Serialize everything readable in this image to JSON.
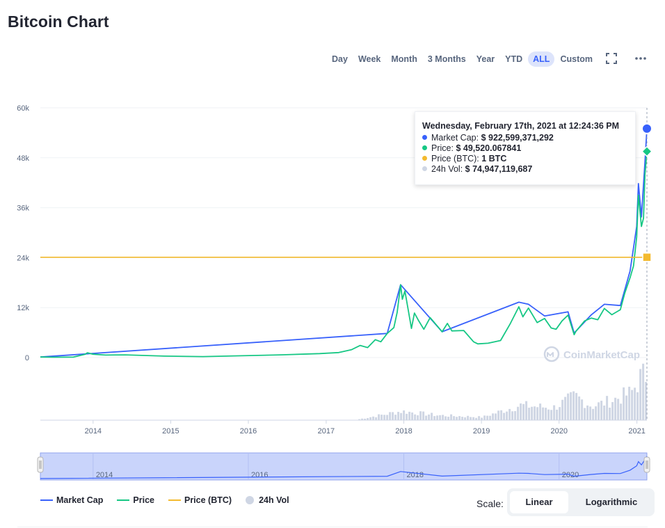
{
  "page": {
    "title": "Bitcoin Chart"
  },
  "range_tabs": [
    {
      "label": "Day",
      "active": false
    },
    {
      "label": "Week",
      "active": false
    },
    {
      "label": "Month",
      "active": false
    },
    {
      "label": "3 Months",
      "active": false
    },
    {
      "label": "Year",
      "active": false
    },
    {
      "label": "YTD",
      "active": false
    },
    {
      "label": "ALL",
      "active": true
    },
    {
      "label": "Custom",
      "active": false
    }
  ],
  "toolbar": {
    "fullscreen_icon": "fullscreen-icon",
    "more_icon": "more-icon"
  },
  "colors": {
    "market_cap": "#3861fb",
    "price": "#16c784",
    "price_btc": "#f3ba2f",
    "volume": "#cfd6e4",
    "accent": "#3861fb",
    "accent_bg": "#dde4fb"
  },
  "tooltip": {
    "date": "Wednesday, February 17th, 2021 at 12:24:36 PM",
    "rows": [
      {
        "label": "Market Cap:",
        "value": "$ 922,599,371,292"
      },
      {
        "label": "Price:",
        "value": "$ 49,520.067841"
      },
      {
        "label": "Price (BTC):",
        "value": "1 BTC"
      },
      {
        "label": "24h Vol:",
        "value": "$ 74,947,119,687"
      }
    ]
  },
  "watermark": "CoinMarketCap",
  "legend": {
    "market_cap": "Market Cap",
    "price": "Price",
    "price_btc": "Price (BTC)",
    "volume": "24h Vol"
  },
  "scale": {
    "label": "Scale:",
    "linear": "Linear",
    "logarithmic": "Logarithmic",
    "selected": "Linear"
  },
  "navigator": {
    "year_labels": [
      "2014",
      "2016",
      "2018",
      "2020"
    ]
  },
  "chart_data": {
    "type": "line",
    "title": "",
    "xlabel": "",
    "ylabel": "",
    "ylim": [
      0,
      60000
    ],
    "y_ticks": [
      "60k",
      "48k",
      "36k",
      "24k",
      "12k",
      "0"
    ],
    "y_tick_values": [
      60000,
      48000,
      36000,
      24000,
      12000,
      0
    ],
    "x_tick_labels": [
      "2014",
      "2015",
      "2016",
      "2017",
      "2018",
      "2019",
      "2020",
      "2021"
    ],
    "x_range": [
      "2013-04-28",
      "2021-02-17"
    ],
    "grid": "horizontal",
    "legend_position": "bottom-left",
    "series": [
      {
        "name": "Price",
        "dates": [
          "2013-04-28",
          "2013-07-01",
          "2013-10-01",
          "2013-11-25",
          "2013-12-05",
          "2014-01-01",
          "2014-03-01",
          "2014-06-01",
          "2014-12-01",
          "2015-06-01",
          "2015-12-01",
          "2016-06-01",
          "2016-12-01",
          "2017-03-01",
          "2017-05-01",
          "2017-06-10",
          "2017-07-15",
          "2017-08-20",
          "2017-09-15",
          "2017-10-15",
          "2017-11-15",
          "2017-12-01",
          "2017-12-17",
          "2017-12-25",
          "2018-01-06",
          "2018-02-06",
          "2018-02-20",
          "2018-03-10",
          "2018-04-05",
          "2018-05-05",
          "2018-06-30",
          "2018-07-25",
          "2018-08-15",
          "2018-10-10",
          "2018-11-25",
          "2018-12-15",
          "2019-02-01",
          "2019-04-01",
          "2019-05-15",
          "2019-06-26",
          "2019-07-15",
          "2019-08-10",
          "2019-09-20",
          "2019-10-25",
          "2019-11-25",
          "2019-12-18",
          "2020-01-15",
          "2020-02-12",
          "2020-03-12",
          "2020-03-20",
          "2020-04-30",
          "2020-06-01",
          "2020-07-01",
          "2020-08-01",
          "2020-09-05",
          "2020-10-15",
          "2020-11-05",
          "2020-11-30",
          "2020-12-16",
          "2020-12-31",
          "2021-01-08",
          "2021-01-22",
          "2021-02-01",
          "2021-02-08",
          "2021-02-17"
        ],
        "values": [
          135,
          90,
          125,
          800,
          1150,
          800,
          600,
          650,
          350,
          230,
          430,
          650,
          950,
          1200,
          1900,
          2900,
          2400,
          4300,
          3800,
          5800,
          7200,
          10900,
          17500,
          14000,
          16000,
          7000,
          10700,
          9000,
          6800,
          9600,
          6200,
          8200,
          6400,
          6500,
          3800,
          3300,
          3450,
          4100,
          8000,
          12200,
          9800,
          11900,
          8400,
          9400,
          7100,
          6800,
          8800,
          10200,
          5500,
          6300,
          8800,
          9500,
          9100,
          11800,
          10300,
          11500,
          15500,
          19200,
          22000,
          29000,
          39000,
          31500,
          33500,
          44000,
          49520
        ]
      },
      {
        "name": "Market Cap",
        "scale_note": "plotted on the price axis",
        "dates": [
          "2013-04-28",
          "2017-10-15",
          "2017-12-17",
          "2018-06-30",
          "2019-06-26",
          "2019-08-10",
          "2019-10-25",
          "2020-02-12",
          "2020-03-12",
          "2020-06-01",
          "2020-08-01",
          "2020-10-15",
          "2020-11-30",
          "2020-12-31",
          "2021-01-08",
          "2021-01-22",
          "2021-02-08",
          "2021-02-17"
        ],
        "values": [
          135,
          5800,
          17500,
          6200,
          13300,
          12800,
          10000,
          11000,
          5900,
          10300,
          12800,
          12500,
          20800,
          31500,
          41800,
          33800,
          47000,
          55000
        ]
      },
      {
        "name": "Price (BTC)",
        "dates": [
          "2013-04-28",
          "2021-02-17"
        ],
        "values": [
          24100,
          24100
        ]
      },
      {
        "name": "24h Vol",
        "kind": "bar",
        "unit": "relative",
        "dates": [
          "2017-06-01",
          "2017-12-17",
          "2018-06-01",
          "2019-01-01",
          "2019-06-26",
          "2019-12-01",
          "2020-03-12",
          "2020-06-01",
          "2020-09-01",
          "2020-12-01",
          "2021-01-11",
          "2021-02-17"
        ],
        "values": [
          2,
          18,
          10,
          6,
          30,
          25,
          48,
          28,
          40,
          55,
          85,
          95
        ]
      }
    ]
  }
}
